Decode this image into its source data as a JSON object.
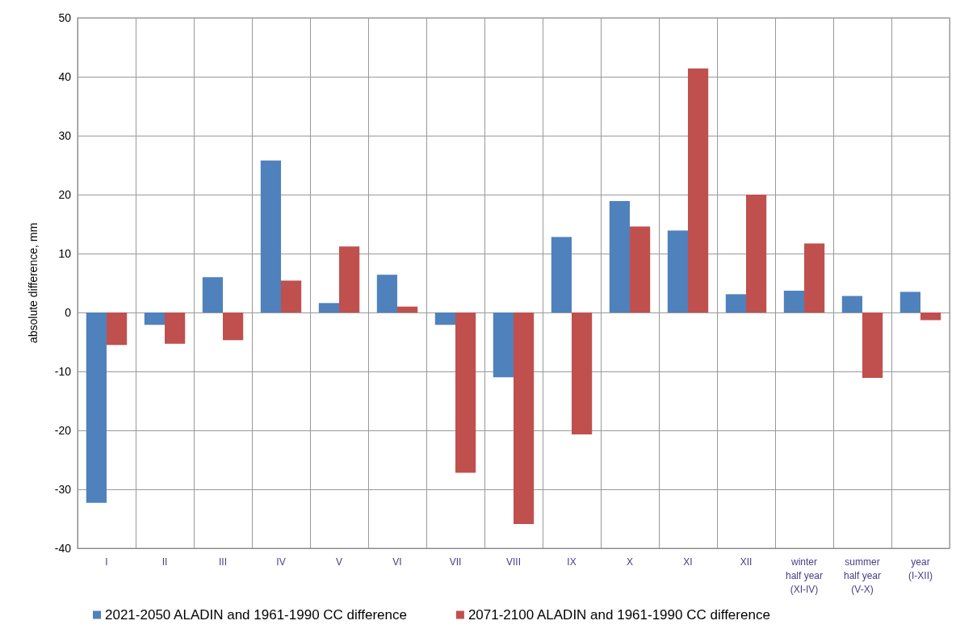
{
  "chart_data": {
    "type": "bar",
    "ylabel": "absolute difference, mm",
    "categories": [
      "I",
      "II",
      "III",
      "IV",
      "V",
      "VI",
      "VII",
      "VIII",
      "IX",
      "X",
      "XI",
      "XII",
      "winter\nhalf year\n(XI-IV)",
      "summer\nhalf year\n(V-X)",
      "year\n(I-XII)"
    ],
    "series": [
      {
        "name": "2021-2050 ALADIN and 1961-1990 CC difference",
        "color": "#4f81bd",
        "values": [
          -32.3,
          -2.1,
          6.0,
          25.8,
          1.6,
          6.4,
          -2.1,
          -11.0,
          12.8,
          18.9,
          13.9,
          3.1,
          3.7,
          2.8,
          3.5
        ]
      },
      {
        "name": "2071-2100 ALADIN and 1961-1990 CC difference",
        "color": "#c0504d",
        "values": [
          -5.5,
          -5.3,
          -4.7,
          5.4,
          11.2,
          1.0,
          -27.2,
          -35.9,
          -20.7,
          14.6,
          41.4,
          20.0,
          11.7,
          -11.1,
          -1.3
        ]
      }
    ],
    "ylim": [
      -40,
      50
    ],
    "yticks": [
      -40,
      -30,
      -20,
      -10,
      0,
      10,
      20,
      30,
      40,
      50
    ],
    "grid": true,
    "legend": "bottom"
  }
}
